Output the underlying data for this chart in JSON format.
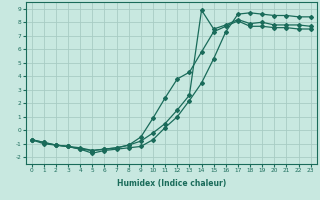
{
  "xlabel": "Humidex (Indice chaleur)",
  "xlim": [
    -0.5,
    23.5
  ],
  "ylim": [
    -2.5,
    9.5
  ],
  "xticks": [
    0,
    1,
    2,
    3,
    4,
    5,
    6,
    7,
    8,
    9,
    10,
    11,
    12,
    13,
    14,
    15,
    16,
    17,
    18,
    19,
    20,
    21,
    22,
    23
  ],
  "yticks": [
    -2,
    -1,
    0,
    1,
    2,
    3,
    4,
    5,
    6,
    7,
    8,
    9
  ],
  "bg_color": "#c8e8e0",
  "grid_color": "#a8ccc4",
  "line_color": "#1a6b5a",
  "line1_x": [
    0,
    1,
    2,
    3,
    4,
    5,
    6,
    7,
    8,
    9,
    10,
    11,
    12,
    13,
    14,
    15,
    16,
    17,
    18,
    19,
    20,
    21,
    22,
    23
  ],
  "line1_y": [
    -0.7,
    -1.0,
    -1.1,
    -1.2,
    -1.4,
    -1.7,
    -1.5,
    -1.4,
    -1.3,
    -1.2,
    -0.7,
    0.2,
    1.0,
    2.2,
    3.5,
    5.3,
    7.3,
    8.6,
    8.7,
    8.6,
    8.5,
    8.5,
    8.4,
    8.4
  ],
  "line2_x": [
    0,
    1,
    2,
    3,
    4,
    5,
    6,
    7,
    8,
    9,
    10,
    11,
    12,
    13,
    14,
    15,
    16,
    17,
    18,
    19,
    20,
    21,
    22,
    23
  ],
  "line2_y": [
    -0.7,
    -0.9,
    -1.1,
    -1.2,
    -1.3,
    -1.5,
    -1.4,
    -1.3,
    -1.1,
    -0.8,
    -0.2,
    0.5,
    1.5,
    2.6,
    8.9,
    7.5,
    7.8,
    8.2,
    7.9,
    8.0,
    7.8,
    7.8,
    7.8,
    7.7
  ],
  "line3_x": [
    0,
    1,
    2,
    3,
    4,
    5,
    6,
    7,
    8,
    9,
    10,
    11,
    12,
    13,
    14,
    15,
    16,
    17,
    18,
    19,
    20,
    21,
    22,
    23
  ],
  "line3_y": [
    -0.7,
    -0.9,
    -1.1,
    -1.2,
    -1.4,
    -1.5,
    -1.4,
    -1.3,
    -1.1,
    -0.5,
    0.9,
    2.4,
    3.8,
    4.3,
    5.8,
    7.3,
    7.7,
    8.1,
    7.7,
    7.7,
    7.6,
    7.6,
    7.5,
    7.5
  ]
}
